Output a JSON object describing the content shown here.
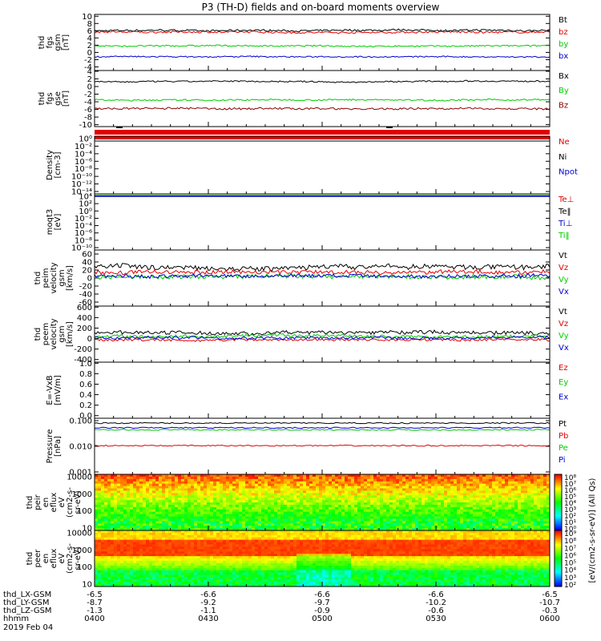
{
  "title": "P3 (TH-D) fields and on-board moments overview",
  "chart_data": [
    {
      "type": "line",
      "panel": "fgs-gsm",
      "ylabel": [
        "thd",
        "fgs",
        "gsm",
        "[nT]"
      ],
      "yticks": [
        10,
        8,
        6,
        4,
        2,
        0,
        -2,
        -4
      ],
      "ylim": [
        -5,
        10.5
      ],
      "series": [
        {
          "name": "Bt",
          "color": "#000000",
          "level": 6.0,
          "noise": 0.5
        },
        {
          "name": "bz",
          "color": "#e00000",
          "level": 5.6,
          "noise": 0.5
        },
        {
          "name": "by",
          "color": "#00cc00",
          "level": 1.8,
          "noise": 0.4
        },
        {
          "name": "bx",
          "color": "#0000cc",
          "level": -1.2,
          "noise": 0.35
        }
      ]
    },
    {
      "type": "line",
      "panel": "fgs-gse",
      "ylabel": [
        "thd",
        "fgs",
        "gse",
        "[nT]"
      ],
      "yticks": [
        4,
        2,
        0,
        -2,
        -4,
        -6,
        -8,
        -10
      ],
      "ylim": [
        -10.5,
        4.2
      ],
      "series": [
        {
          "name": "Bx",
          "color": "#000000",
          "level": 1.3,
          "noise": 0.35
        },
        {
          "name": "By",
          "color": "#00cc00",
          "level": -3.5,
          "noise": 0.4
        },
        {
          "name": "Bz",
          "color": "#8b0000",
          "level": -5.8,
          "noise": 0.5
        }
      ]
    },
    {
      "type": "line",
      "panel": "density",
      "ylabel": [
        "Density",
        "[cm-3]"
      ],
      "ytick_labels": [
        "10⁰",
        "10⁻²",
        "10⁻⁴",
        "10⁻⁶",
        "10⁻⁸",
        "10⁻¹⁰",
        "10⁻¹²",
        "10⁻¹⁴"
      ],
      "series": [
        {
          "name": "Ne",
          "color": "#e00000"
        },
        {
          "name": "Ni",
          "color": "#000000"
        },
        {
          "name": "Npot",
          "color": "#0000cc"
        }
      ]
    },
    {
      "type": "line",
      "panel": "temperature",
      "ylabel": [
        "moqt3",
        "[eV]"
      ],
      "ytick_labels": [
        "10⁴",
        "10²",
        "10⁰",
        "10⁻²",
        "10⁻⁴",
        "10⁻⁶",
        "10⁻⁸",
        "10⁻¹⁰"
      ],
      "series": [
        {
          "name": "Te⊥",
          "color": "#e00000"
        },
        {
          "name": "Te‖",
          "color": "#000000"
        },
        {
          "name": "Ti⊥",
          "color": "#0000cc"
        },
        {
          "name": "Ti‖",
          "color": "#00cc00"
        }
      ]
    },
    {
      "type": "line",
      "panel": "peim-velocity",
      "ylabel": [
        "thd",
        "peim",
        "velocity",
        "gsm",
        "[km/s]"
      ],
      "yticks": [
        60,
        40,
        20,
        0,
        -20,
        -40,
        -60
      ],
      "ylim": [
        -70,
        70
      ],
      "series": [
        {
          "name": "Vt",
          "color": "#000000",
          "level": 28,
          "noise": 12
        },
        {
          "name": "Vz",
          "color": "#e00000",
          "level": 15,
          "noise": 10
        },
        {
          "name": "Vy",
          "color": "#00cc00",
          "level": 2,
          "noise": 11
        },
        {
          "name": "Vx",
          "color": "#0000cc",
          "level": 5,
          "noise": 9
        }
      ]
    },
    {
      "type": "line",
      "panel": "peem-velocity",
      "ylabel": [
        "thd",
        "peem",
        "velocity",
        "gsm",
        "[km/s]"
      ],
      "yticks": [
        600,
        400,
        200,
        0,
        -200,
        -400
      ],
      "ylim": [
        -450,
        620
      ],
      "series": [
        {
          "name": "Vt",
          "color": "#000000",
          "level": 120,
          "noise": 70
        },
        {
          "name": "Vz",
          "color": "#e00000",
          "level": -20,
          "noise": 45
        },
        {
          "name": "Vy",
          "color": "#00cc00",
          "level": 40,
          "noise": 55
        },
        {
          "name": "Vx",
          "color": "#0000cc",
          "level": 20,
          "noise": 50
        }
      ]
    },
    {
      "type": "line",
      "panel": "efield",
      "ylabel": [
        "E=-VxB",
        "[mV/m]"
      ],
      "yticks": [
        "1.0",
        "0.8",
        "0.6",
        "0.4",
        "0.2",
        "0.0"
      ],
      "ylim": [
        -0.05,
        1.02
      ],
      "series": [
        {
          "name": "Ez",
          "color": "#e00000"
        },
        {
          "name": "Ey",
          "color": "#00cc00"
        },
        {
          "name": "Ex",
          "color": "#0000cc"
        }
      ]
    },
    {
      "type": "line",
      "panel": "pressure",
      "ylabel": [
        "Pressure",
        "[nPa]"
      ],
      "yticks": [
        "0.100",
        "0.010",
        "0.001"
      ],
      "series": [
        {
          "name": "Pt",
          "color": "#000000",
          "level": 0.24
        },
        {
          "name": "Pb",
          "color": "#e00000",
          "level": 0.018
        },
        {
          "name": "Pe",
          "color": "#00cc00",
          "level": 0.11
        },
        {
          "name": "Pi",
          "color": "#0000cc",
          "level": 0.14
        }
      ]
    },
    {
      "type": "heatmap",
      "panel": "peir-eflux",
      "ylabel": [
        "thd",
        "peir",
        "en",
        "eflux",
        "eV",
        "(cm2-s-",
        "sr-eV)"
      ],
      "yticks": [
        "10000",
        "1000",
        "100",
        "10"
      ]
    },
    {
      "type": "heatmap",
      "panel": "peer-eflux",
      "ylabel": [
        "thd",
        "peer",
        "en",
        "eflux",
        "eV",
        "(cm2-s-",
        "sr-eV)"
      ],
      "yticks": [
        "10000",
        "1000",
        "100",
        "10"
      ]
    }
  ],
  "colorbar": {
    "upper_ticks": [
      "10⁸",
      "10⁷",
      "10⁶",
      "10⁵",
      "10⁴",
      "10³",
      "10²",
      "10¹",
      "10⁰"
    ],
    "lower_ticks": [
      "10⁹",
      "10⁸",
      "10⁷",
      "10⁶",
      "10⁵",
      "10⁴",
      "10³",
      "10²"
    ],
    "label": "[eV/(cm2-s-sr-eV)] (All Qs)"
  },
  "x_axis": {
    "rows": [
      {
        "label": "thd_LX-GSM",
        "values": [
          "-6.5",
          "-6.6",
          "-6.6",
          "-6.6",
          "-6.5"
        ]
      },
      {
        "label": "thd_LY-GSM",
        "values": [
          "-8.7",
          "-9.2",
          "-9.7",
          "-10.2",
          "-10.7"
        ]
      },
      {
        "label": "thd_LZ-GSM",
        "values": [
          "-1.3",
          "-1.1",
          "-0.9",
          "-0.6",
          "-0.3"
        ]
      },
      {
        "label": "hhmm",
        "values": [
          "0400",
          "0430",
          "0500",
          "0530",
          "0600"
        ]
      }
    ],
    "date": "2019 Feb 04"
  }
}
